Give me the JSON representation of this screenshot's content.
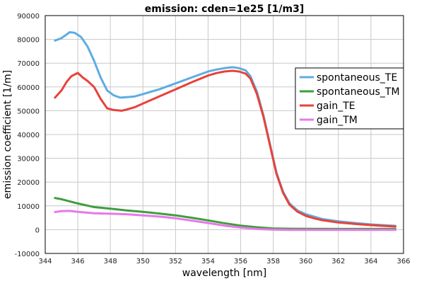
{
  "chart_data": {
    "type": "line",
    "title": "emission: cden=1e25 [1/m3]",
    "xlabel": "wavelength [nm]",
    "ylabel": "emission coefficient [1/m]",
    "xlim": [
      344,
      366
    ],
    "ylim": [
      -10000,
      90000
    ],
    "xticks": [
      344,
      346,
      348,
      350,
      352,
      354,
      356,
      358,
      360,
      362,
      364,
      366
    ],
    "yticks": [
      -10000,
      0,
      10000,
      20000,
      30000,
      40000,
      50000,
      60000,
      70000,
      80000,
      90000
    ],
    "grid": true,
    "legend_position": "right",
    "series": [
      {
        "name": "spontaneous_TE",
        "color": "#5dade2",
        "x": [
          344.6,
          345.0,
          345.3,
          345.5,
          345.8,
          346.2,
          346.6,
          347.0,
          347.4,
          347.8,
          348.2,
          348.6,
          349.0,
          349.5,
          350.0,
          350.5,
          351.0,
          352.0,
          353.0,
          354.0,
          354.5,
          355.0,
          355.5,
          355.9,
          356.3,
          356.6,
          357.0,
          357.4,
          357.8,
          358.2,
          358.6,
          359.0,
          359.5,
          360.0,
          360.5,
          361.0,
          362.0,
          363.0,
          364.0,
          365.0,
          365.5
        ],
        "y": [
          79500,
          80500,
          82000,
          83000,
          82800,
          81000,
          77000,
          71000,
          64000,
          58500,
          56500,
          55500,
          55700,
          56000,
          57000,
          58000,
          59000,
          61500,
          64000,
          66500,
          67300,
          67900,
          68300,
          67900,
          67000,
          64500,
          58000,
          48000,
          36000,
          24000,
          16000,
          11000,
          8000,
          6500,
          5500,
          4500,
          3500,
          2800,
          2200,
          1800,
          1600
        ]
      },
      {
        "name": "spontaneous_TM",
        "color": "#3d9e3d",
        "x": [
          344.6,
          345.0,
          346.0,
          347.0,
          348.0,
          349.0,
          350.0,
          351.0,
          352.0,
          353.0,
          354.0,
          355.0,
          356.0,
          357.0,
          358.0,
          359.0,
          360.0,
          362.0,
          364.0,
          365.5
        ],
        "y": [
          13300,
          12800,
          11000,
          9500,
          8800,
          8100,
          7500,
          6800,
          6000,
          5000,
          3900,
          2700,
          1700,
          1000,
          500,
          400,
          350,
          300,
          300,
          300
        ]
      },
      {
        "name": "gain_TE",
        "color": "#e8423a",
        "x": [
          344.6,
          345.0,
          345.3,
          345.6,
          346.0,
          346.3,
          346.6,
          347.0,
          347.4,
          347.8,
          348.2,
          348.7,
          349.0,
          349.5,
          350.0,
          350.5,
          351.0,
          352.0,
          353.0,
          354.0,
          354.5,
          355.0,
          355.5,
          355.9,
          356.3,
          356.6,
          357.0,
          357.4,
          357.8,
          358.2,
          358.6,
          359.0,
          359.5,
          360.0,
          360.5,
          361.0,
          362.0,
          363.0,
          364.0,
          365.0,
          365.5
        ],
        "y": [
          55500,
          58500,
          62000,
          64500,
          65900,
          64000,
          62500,
          60000,
          55000,
          51000,
          50300,
          50000,
          50500,
          51500,
          53000,
          54500,
          56000,
          59000,
          62000,
          64800,
          65800,
          66500,
          66800,
          66500,
          65600,
          63500,
          57000,
          47500,
          35500,
          23500,
          15500,
          10500,
          7500,
          5800,
          4800,
          4000,
          3000,
          2400,
          1900,
          1500,
          1300
        ]
      },
      {
        "name": "gain_TM",
        "color": "#e878e8",
        "x": [
          344.6,
          345.0,
          345.5,
          346.0,
          347.0,
          348.0,
          349.0,
          350.0,
          351.0,
          352.0,
          353.0,
          354.0,
          355.0,
          356.0,
          357.0,
          358.0,
          359.0,
          360.0,
          362.0,
          364.0,
          365.5
        ],
        "y": [
          7400,
          7800,
          7900,
          7500,
          6900,
          6700,
          6500,
          6000,
          5500,
          4800,
          3800,
          2800,
          1700,
          900,
          300,
          0,
          -100,
          -100,
          -100,
          -100,
          -100
        ]
      }
    ]
  }
}
